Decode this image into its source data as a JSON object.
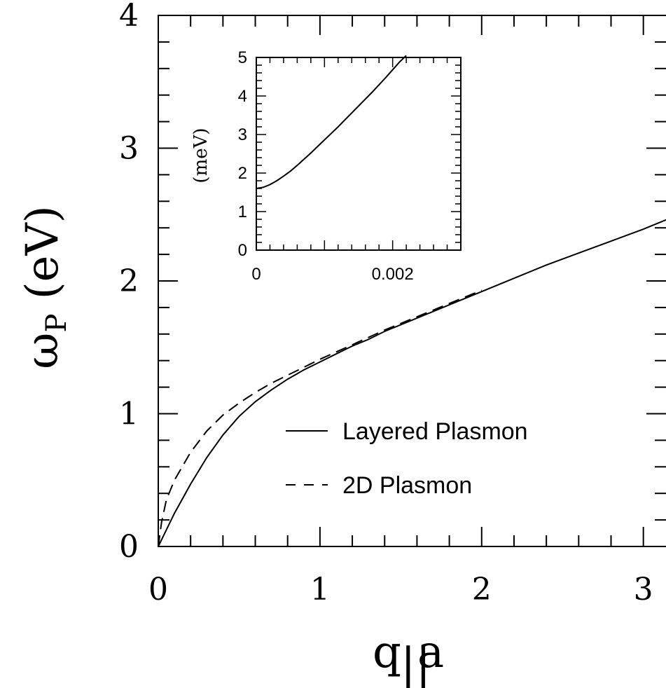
{
  "chart_data": [
    {
      "type": "line",
      "xlabel": "q||a",
      "ylabel": "ωP (eV)",
      "xlim": [
        0,
        3.14
      ],
      "ylim": [
        0,
        4
      ],
      "xticks": [
        "0",
        "1",
        "2",
        "3"
      ],
      "yticks": [
        "0",
        "1",
        "2",
        "3",
        "4"
      ],
      "legend_position": "middle-right",
      "series": [
        {
          "name": "Layered Plasmon",
          "style": "solid",
          "x": [
            0,
            0.1,
            0.2,
            0.3,
            0.4,
            0.5,
            0.6,
            0.7,
            0.8,
            0.9,
            1.0,
            1.1,
            1.2,
            1.3,
            1.4,
            1.6,
            1.8,
            2.0,
            2.2,
            2.4,
            2.6,
            2.8,
            3.0,
            3.14
          ],
          "y": [
            0,
            0.25,
            0.47,
            0.67,
            0.84,
            0.98,
            1.09,
            1.18,
            1.26,
            1.33,
            1.39,
            1.45,
            1.51,
            1.56,
            1.62,
            1.72,
            1.82,
            1.92,
            2.02,
            2.12,
            2.21,
            2.3,
            2.39,
            2.46
          ]
        },
        {
          "name": "2D Plasmon",
          "style": "dashed",
          "x": [
            0,
            0.02,
            0.05,
            0.1,
            0.2,
            0.3,
            0.4,
            0.5,
            0.6,
            0.7,
            0.8,
            0.9,
            1.0,
            1.2,
            1.4,
            1.6,
            1.8,
            2.0
          ],
          "y": [
            0,
            0.18,
            0.35,
            0.5,
            0.71,
            0.87,
            0.99,
            1.08,
            1.16,
            1.23,
            1.29,
            1.35,
            1.41,
            1.52,
            1.63,
            1.73,
            1.83,
            1.93
          ]
        }
      ]
    },
    {
      "type": "line",
      "inset": true,
      "ylabel": "(meV)",
      "xlim": [
        0,
        0.003
      ],
      "ylim": [
        0,
        5
      ],
      "xticks": [
        "0",
        "0.002"
      ],
      "yticks": [
        "0",
        "1",
        "2",
        "3",
        "4",
        "5"
      ],
      "series": [
        {
          "style": "solid",
          "x": [
            0,
            0.0001,
            0.0002,
            0.0003,
            0.0004,
            0.0005,
            0.0006,
            0.0007,
            0.0008,
            0.0009,
            0.001,
            0.0011,
            0.0012,
            0.0013,
            0.0014,
            0.0015,
            0.0016,
            0.0017,
            0.0018,
            0.0019,
            0.002,
            0.0021,
            0.0022
          ],
          "y": [
            1.6,
            1.63,
            1.7,
            1.8,
            1.92,
            2.05,
            2.2,
            2.36,
            2.52,
            2.69,
            2.86,
            3.03,
            3.2,
            3.38,
            3.56,
            3.74,
            3.92,
            4.1,
            4.29,
            4.48,
            4.68,
            4.88,
            5.05
          ]
        }
      ]
    }
  ]
}
